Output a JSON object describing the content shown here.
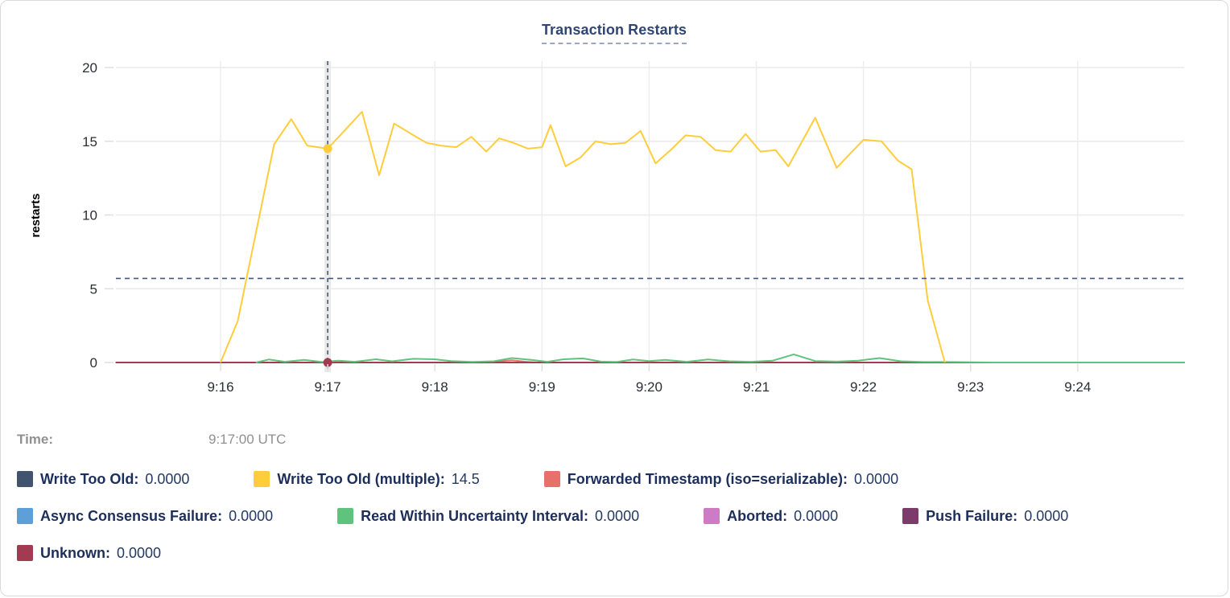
{
  "title": "Transaction Restarts",
  "time_row": {
    "label": "Time:",
    "value": "9:17:00 UTC"
  },
  "chart_data": {
    "type": "line",
    "title": "Transaction Restarts",
    "xlabel": "",
    "ylabel": "restarts",
    "ylim": [
      0,
      20
    ],
    "yticks": [
      0,
      5,
      10,
      15,
      20
    ],
    "xtick_minutes": [
      16,
      17,
      18,
      19,
      20,
      21,
      22,
      23,
      24
    ],
    "xtick_labels": [
      "9:16",
      "9:17",
      "9:18",
      "9:19",
      "9:20",
      "9:21",
      "9:22",
      "9:23",
      "9:24"
    ],
    "x_domain_minutes": [
      15.02,
      25.0
    ],
    "grid": true,
    "legend_position": "bottom",
    "hover": {
      "x_minute": 17,
      "time_value": "9:17:00 UTC",
      "avg_line_value": 5.7,
      "dots": [
        {
          "series": "Write Too Old (multiple)",
          "value": 14.5
        },
        {
          "series": "Unknown",
          "value": 0
        }
      ]
    },
    "series": [
      {
        "name": "Write Too Old",
        "color": "#41536e",
        "legend_value": "0.0000",
        "legend_row": 0,
        "points": [
          [
            15.02,
            0
          ],
          [
            25.0,
            0
          ]
        ]
      },
      {
        "name": "Write Too Old (multiple)",
        "color": "#ffcd3b",
        "legend_value": "14.5",
        "legend_row": 0,
        "points": [
          [
            16.0,
            0
          ],
          [
            16.16,
            2.8
          ],
          [
            16.5,
            14.8
          ],
          [
            16.66,
            16.5
          ],
          [
            16.81,
            14.7
          ],
          [
            17.0,
            14.5
          ],
          [
            17.32,
            17.0
          ],
          [
            17.48,
            12.7
          ],
          [
            17.62,
            16.2
          ],
          [
            17.78,
            15.5
          ],
          [
            17.92,
            14.9
          ],
          [
            18.06,
            14.7
          ],
          [
            18.2,
            14.6
          ],
          [
            18.34,
            15.3
          ],
          [
            18.48,
            14.3
          ],
          [
            18.6,
            15.2
          ],
          [
            18.73,
            14.9
          ],
          [
            18.87,
            14.5
          ],
          [
            19.0,
            14.6
          ],
          [
            19.08,
            16.1
          ],
          [
            19.22,
            13.3
          ],
          [
            19.36,
            13.9
          ],
          [
            19.5,
            15.0
          ],
          [
            19.64,
            14.8
          ],
          [
            19.78,
            14.9
          ],
          [
            19.92,
            15.7
          ],
          [
            20.06,
            13.5
          ],
          [
            20.2,
            14.4
          ],
          [
            20.34,
            15.4
          ],
          [
            20.48,
            15.3
          ],
          [
            20.62,
            14.4
          ],
          [
            20.76,
            14.3
          ],
          [
            20.9,
            15.5
          ],
          [
            21.04,
            14.3
          ],
          [
            21.18,
            14.4
          ],
          [
            21.3,
            13.3
          ],
          [
            21.55,
            16.6
          ],
          [
            21.75,
            13.2
          ],
          [
            22.0,
            15.1
          ],
          [
            22.17,
            15.0
          ],
          [
            22.32,
            13.7
          ],
          [
            22.45,
            13.1
          ],
          [
            22.6,
            4.2
          ],
          [
            22.76,
            0
          ]
        ]
      },
      {
        "name": "Forwarded Timestamp (iso=serializable)",
        "color": "#e8706b",
        "legend_value": "0.0000",
        "legend_row": 0,
        "points": [
          [
            15.02,
            0
          ],
          [
            18.5,
            0
          ],
          [
            18.62,
            0.1
          ],
          [
            18.72,
            0.15
          ],
          [
            18.85,
            0.05
          ],
          [
            18.95,
            0
          ],
          [
            25.0,
            0
          ]
        ]
      },
      {
        "name": "Async Consensus Failure",
        "color": "#5c9fd9",
        "legend_value": "0.0000",
        "legend_row": 1,
        "points": [
          [
            15.02,
            0
          ],
          [
            25.0,
            0
          ]
        ]
      },
      {
        "name": "Read Within Uncertainty Interval",
        "color": "#5ec37c",
        "legend_value": "0.0000",
        "legend_row": 1,
        "points": [
          [
            16.33,
            0
          ],
          [
            16.45,
            0.2
          ],
          [
            16.6,
            0.05
          ],
          [
            16.78,
            0.18
          ],
          [
            16.95,
            0.03
          ],
          [
            17.1,
            0.12
          ],
          [
            17.25,
            0.05
          ],
          [
            17.45,
            0.22
          ],
          [
            17.6,
            0.08
          ],
          [
            17.8,
            0.25
          ],
          [
            18.0,
            0.22
          ],
          [
            18.15,
            0.1
          ],
          [
            18.35,
            0.04
          ],
          [
            18.55,
            0.08
          ],
          [
            18.72,
            0.3
          ],
          [
            18.9,
            0.18
          ],
          [
            19.05,
            0.05
          ],
          [
            19.2,
            0.22
          ],
          [
            19.38,
            0.28
          ],
          [
            19.55,
            0.06
          ],
          [
            19.7,
            0.04
          ],
          [
            19.85,
            0.2
          ],
          [
            20.0,
            0.1
          ],
          [
            20.15,
            0.18
          ],
          [
            20.35,
            0.05
          ],
          [
            20.55,
            0.2
          ],
          [
            20.75,
            0.08
          ],
          [
            20.95,
            0.05
          ],
          [
            21.15,
            0.12
          ],
          [
            21.35,
            0.55
          ],
          [
            21.55,
            0.1
          ],
          [
            21.75,
            0.06
          ],
          [
            21.95,
            0.12
          ],
          [
            22.15,
            0.3
          ],
          [
            22.35,
            0.08
          ],
          [
            22.55,
            0.04
          ],
          [
            22.8,
            0.03
          ],
          [
            23.2,
            0
          ],
          [
            25.0,
            0
          ]
        ]
      },
      {
        "name": "Aborted",
        "color": "#cc7bc4",
        "legend_value": "0.0000",
        "legend_row": 1,
        "points": [
          [
            15.02,
            0
          ],
          [
            25.0,
            0
          ]
        ]
      },
      {
        "name": "Push Failure",
        "color": "#7b3c6c",
        "legend_value": "0.0000",
        "legend_row": 1,
        "points": [
          [
            15.02,
            0
          ],
          [
            25.0,
            0
          ]
        ]
      },
      {
        "name": "Unknown",
        "color": "#a23b52",
        "legend_value": "0.0000",
        "legend_row": 2,
        "points": [
          [
            15.02,
            0
          ],
          [
            25.0,
            0
          ]
        ]
      }
    ]
  }
}
